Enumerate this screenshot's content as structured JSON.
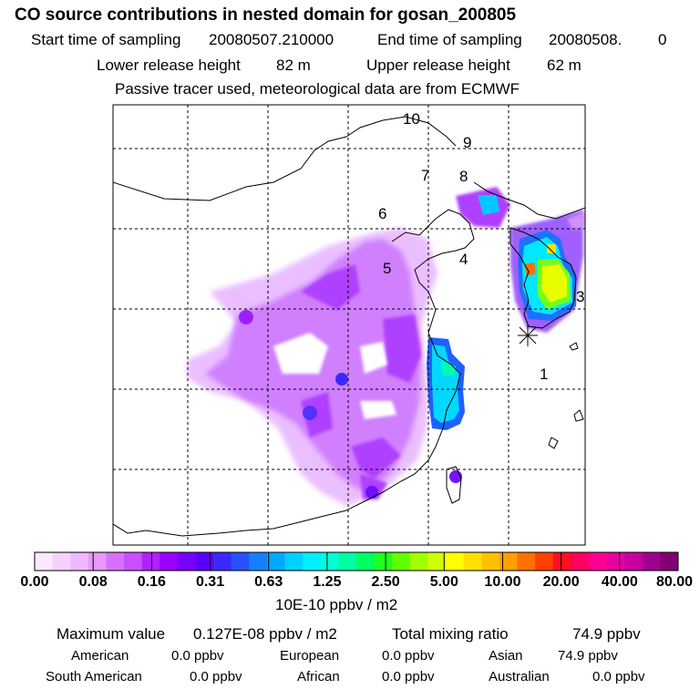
{
  "header": {
    "title": "CO  source contributions in nested domain for gosan_200805",
    "start_label": "Start time of sampling",
    "start_value": "20080507.210000",
    "end_label": "End time of sampling",
    "end_value": "20080508.",
    "end_suffix": "0",
    "lower_label": "Lower release height",
    "lower_value": "82 m",
    "upper_label": "Upper release height",
    "upper_value": "62 m",
    "passive_note": "Passive tracer used, meteorological data are from ECMWF"
  },
  "map": {
    "region_labels": [
      "1",
      "3",
      "4",
      "5",
      "6",
      "7",
      "8",
      "9",
      "10"
    ],
    "receptor_marker": "asterisk"
  },
  "colorbar": {
    "tick_labels": [
      "0.00",
      "0.08",
      "0.16",
      "0.31",
      "0.63",
      "1.25",
      "2.50",
      "5.00",
      "10.00",
      "20.00",
      "40.00",
      "80.00"
    ],
    "unit": "10E-10 ppbv / m2",
    "colors": [
      "#fde8ff",
      "#f8d0ff",
      "#f0b8ff",
      "#e898ff",
      "#d870ff",
      "#c850ff",
      "#b020ff",
      "#9800ff",
      "#7800ff",
      "#5a00ff",
      "#3c28ff",
      "#2850ff",
      "#1480ff",
      "#00a8ff",
      "#00d0ff",
      "#00f0ff",
      "#00ffd8",
      "#00ffa0",
      "#00ff60",
      "#20ff20",
      "#60ff00",
      "#a0ff00",
      "#d0ff00",
      "#ffff00",
      "#ffe000",
      "#ffc000",
      "#ffa000",
      "#ff7000",
      "#ff4000",
      "#ff1020",
      "#ff0060",
      "#ff0090",
      "#e800a0",
      "#c800a0",
      "#a00090",
      "#800070"
    ]
  },
  "stats": {
    "max_label": "Maximum value",
    "max_value": "0.127E-08 ppbv / m2",
    "total_label": "Total mixing ratio",
    "total_value": "74.9 ppbv",
    "regions": [
      {
        "name": "American",
        "value": "0.0 ppbv"
      },
      {
        "name": "European",
        "value": "0.0 ppbv"
      },
      {
        "name": "Asian",
        "value": "74.9 ppbv"
      },
      {
        "name": "South American",
        "value": "0.0 ppbv"
      },
      {
        "name": "African",
        "value": "0.0 ppbv"
      },
      {
        "name": "Australian",
        "value": "0.0 ppbv"
      }
    ]
  }
}
